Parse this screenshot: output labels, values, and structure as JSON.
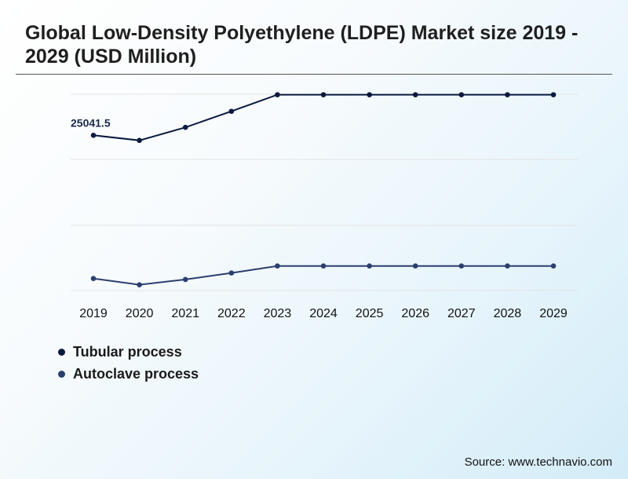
{
  "title": "Global Low-Density Polyethylene (LDPE) Market size 2019 - 2029 (USD Million)",
  "source": "Source: www.technavio.com",
  "colors": {
    "tubular": "#0a1a3f",
    "autoclave": "#2b3f6e",
    "grid": "#e3e3e3"
  },
  "chart_data": {
    "type": "line",
    "title": "Global Low-Density Polyethylene (LDPE) Market size 2019 - 2029 (USD Million)",
    "xlabel": "",
    "ylabel": "",
    "categories": [
      "2019",
      "2020",
      "2021",
      "2022",
      "2023",
      "2024",
      "2025",
      "2026",
      "2027",
      "2028",
      "2029"
    ],
    "series": [
      {
        "name": "Tubular process",
        "values": [
          25041.5,
          24940,
          25200,
          25520,
          25850,
          25850,
          25850,
          25850,
          25850,
          25850,
          25850
        ]
      },
      {
        "name": "Autoclave process",
        "values": [
          22190,
          22065,
          22170,
          22300,
          22440,
          22440,
          22440,
          22440,
          22440,
          22440,
          22440
        ]
      }
    ],
    "data_labels": [
      {
        "series": 0,
        "index": 0,
        "text": "25041.5"
      }
    ],
    "ylim": [
      21950,
      25860
    ],
    "grid": true,
    "legend": "bottom-left"
  }
}
